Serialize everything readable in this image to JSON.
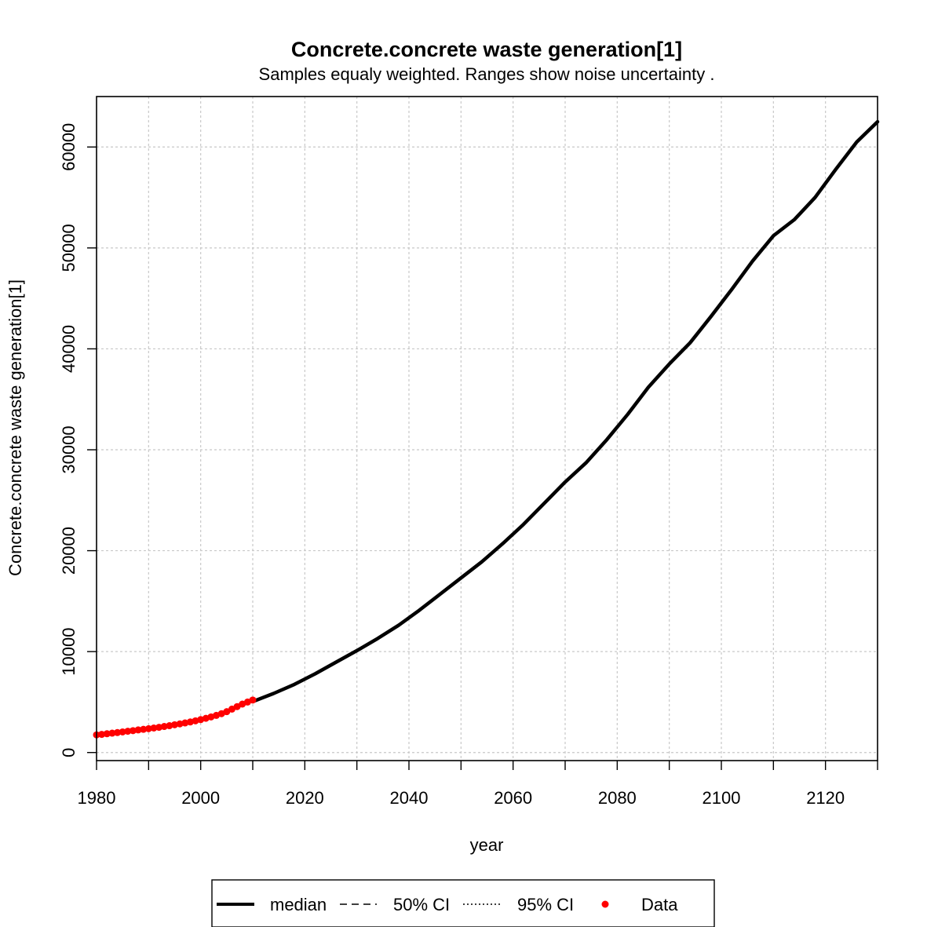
{
  "chart_data": {
    "type": "line",
    "title": "Concrete.concrete waste generation[1]",
    "subtitle": "Samples equaly weighted. Ranges show  noise uncertainty .",
    "xlabel": "year",
    "ylabel": "Concrete.concrete waste generation[1]",
    "xlim": [
      1980,
      2130
    ],
    "ylim": [
      -800,
      65000
    ],
    "x_ticks": [
      1980,
      2000,
      2020,
      2040,
      2060,
      2080,
      2100,
      2120
    ],
    "x_minor_ticks": [
      1990,
      2010,
      2030,
      2050,
      2070,
      2090,
      2110,
      2130
    ],
    "y_ticks": [
      0,
      10000,
      20000,
      30000,
      40000,
      50000,
      60000
    ],
    "grid": true,
    "legend_position": "bottom",
    "legend": [
      {
        "label": "median",
        "style": "solid-thick"
      },
      {
        "label": "50% CI",
        "style": "dashed"
      },
      {
        "label": "95% CI",
        "style": "dotted"
      },
      {
        "label": "Data",
        "style": "point"
      }
    ],
    "series": [
      {
        "name": "median",
        "color": "#000000",
        "x": [
          2010,
          2014,
          2018,
          2022,
          2026,
          2030,
          2034,
          2038,
          2042,
          2046,
          2050,
          2054,
          2058,
          2062,
          2066,
          2070,
          2074,
          2078,
          2082,
          2086,
          2090,
          2094,
          2098,
          2102,
          2106,
          2110,
          2114,
          2118,
          2122,
          2126,
          2130
        ],
        "y": [
          5050,
          5850,
          6750,
          7800,
          8950,
          10100,
          11300,
          12600,
          14100,
          15700,
          17300,
          18900,
          20700,
          22600,
          24700,
          26800,
          28700,
          31000,
          33500,
          36200,
          38500,
          40600,
          43200,
          45900,
          48700,
          51200,
          52800,
          55000,
          57800,
          60500,
          62500
        ]
      },
      {
        "name": "Data",
        "color": "#ff0000",
        "x": [
          1980,
          1981,
          1982,
          1983,
          1984,
          1985,
          1986,
          1987,
          1988,
          1989,
          1990,
          1991,
          1992,
          1993,
          1994,
          1995,
          1996,
          1997,
          1998,
          1999,
          2000,
          2001,
          2002,
          2003,
          2004,
          2005,
          2006,
          2007,
          2008,
          2009,
          2010
        ],
        "y": [
          1750,
          1800,
          1860,
          1920,
          1980,
          2040,
          2110,
          2170,
          2240,
          2300,
          2360,
          2430,
          2500,
          2580,
          2660,
          2750,
          2840,
          2930,
          3030,
          3140,
          3260,
          3390,
          3530,
          3680,
          3850,
          4050,
          4300,
          4550,
          4800,
          5000,
          5200
        ]
      }
    ]
  }
}
